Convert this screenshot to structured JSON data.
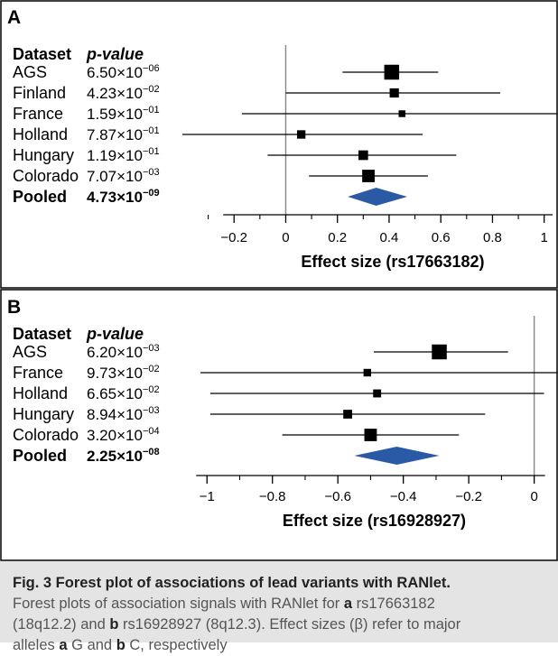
{
  "chart_data": [
    {
      "type": "forest",
      "panel_label": "A",
      "col_headers": [
        "Dataset",
        "p-value"
      ],
      "xlabel": "Effect size (rs17663182)",
      "xlim": [
        -0.33,
        1.05
      ],
      "xticks": [
        "−0.2",
        "0",
        "0.2",
        "0.4",
        "0.6",
        "0.8",
        "1"
      ],
      "xtick_values": [
        -0.2,
        0,
        0.2,
        0.4,
        0.6,
        0.8,
        1
      ],
      "reference_line": 0,
      "rows": [
        {
          "dataset": "AGS",
          "p_mant": "6.50",
          "p_exp": "−06",
          "est": 0.41,
          "lo": 0.22,
          "hi": 0.59,
          "weight": 3
        },
        {
          "dataset": "Finland",
          "p_mant": "4.23",
          "p_exp": "−02",
          "est": 0.42,
          "lo": 0.0,
          "hi": 0.83,
          "weight": 1.6
        },
        {
          "dataset": "France",
          "p_mant": "1.59",
          "p_exp": "−01",
          "est": 0.45,
          "lo": -0.17,
          "hi": 1.05,
          "weight": 1
        },
        {
          "dataset": "Holland",
          "p_mant": "7.87",
          "p_exp": "−01",
          "est": 0.06,
          "lo": -0.4,
          "hi": 0.53,
          "weight": 1.4
        },
        {
          "dataset": "Hungary",
          "p_mant": "1.19",
          "p_exp": "−01",
          "est": 0.3,
          "lo": -0.07,
          "hi": 0.66,
          "weight": 1.7
        },
        {
          "dataset": "Colorado",
          "p_mant": "7.07",
          "p_exp": "−03",
          "est": 0.32,
          "lo": 0.09,
          "hi": 0.55,
          "weight": 2.4
        }
      ],
      "pooled": {
        "dataset": "Pooled",
        "p_mant": "4.73",
        "p_exp": "−09",
        "est": 0.35,
        "lo": 0.24,
        "hi": 0.47
      },
      "colors": {
        "diamond": "#2a59a6",
        "line": "#000000",
        "reference": "#888888"
      }
    },
    {
      "type": "forest",
      "panel_label": "B",
      "col_headers": [
        "Dataset",
        "p-value"
      ],
      "xlabel": "Effect size (rs16928927)",
      "xlim": [
        -1.02,
        0.07
      ],
      "xticks": [
        "−1",
        "−0.8",
        "−0.6",
        "−0.4",
        "−0.2",
        "0"
      ],
      "xtick_values": [
        -1,
        -0.8,
        -0.6,
        -0.4,
        -0.2,
        0
      ],
      "reference_line": 0,
      "rows": [
        {
          "dataset": "AGS",
          "p_mant": "6.20",
          "p_exp": "−03",
          "est": -0.29,
          "lo": -0.49,
          "hi": -0.08,
          "weight": 3
        },
        {
          "dataset": "France",
          "p_mant": "9.73",
          "p_exp": "−02",
          "est": -0.51,
          "lo": -1.02,
          "hi": 0.07,
          "weight": 1.2
        },
        {
          "dataset": "Holland",
          "p_mant": "6.65",
          "p_exp": "−02",
          "est": -0.48,
          "lo": -0.99,
          "hi": 0.03,
          "weight": 1.3
        },
        {
          "dataset": "Hungary",
          "p_mant": "8.94",
          "p_exp": "−03",
          "est": -0.57,
          "lo": -0.99,
          "hi": -0.15,
          "weight": 1.5
        },
        {
          "dataset": "Colorado",
          "p_mant": "3.20",
          "p_exp": "−04",
          "est": -0.5,
          "lo": -0.77,
          "hi": -0.23,
          "weight": 2.4
        }
      ],
      "pooled": {
        "dataset": "Pooled",
        "p_mant": "2.25",
        "p_exp": "−08",
        "est": -0.42,
        "lo": -0.55,
        "hi": -0.29
      },
      "colors": {
        "diamond": "#2a59a6",
        "line": "#000000",
        "reference": "#888888"
      }
    }
  ],
  "caption": {
    "title": "Fig. 3 Forest plot of associations of lead variants with RANlet.",
    "line1": "Forest plots of association signals with RANlet for",
    "a": "a",
    "line1b": "rs17663182",
    "line2a": "(18q12.2) and",
    "b": "b",
    "line2b": "rs16928927 (8q12.3). Effect sizes (β) refer to major",
    "line3a": "alleles",
    "a2": "a",
    "line3b": "G and",
    "b2": "b",
    "line3c": "C, respectively"
  }
}
